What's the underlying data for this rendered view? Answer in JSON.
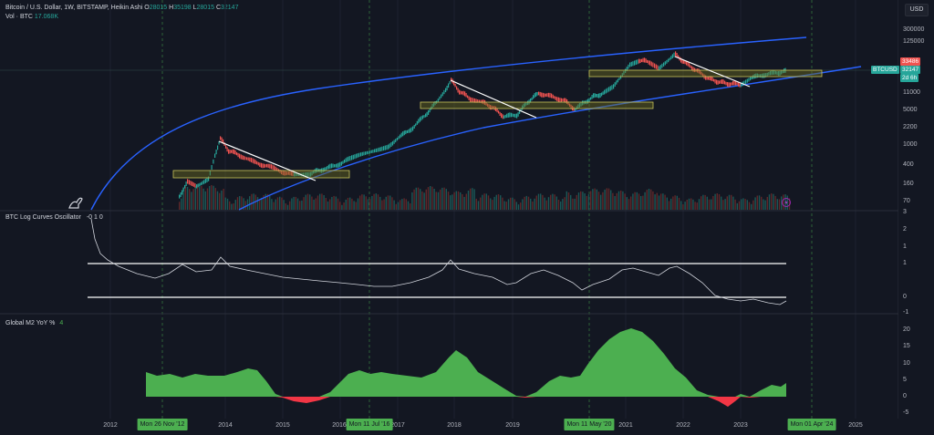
{
  "header": {
    "symbol_line": "Bitcoin / U.S. Dollar, 1W, BITSTAMP, Heikin Ashi",
    "o_label": "O",
    "o_value": "28015",
    "h_label": "H",
    "h_value": "35198",
    "l_label": "L",
    "l_value": "28015",
    "c_label": "C",
    "c_value": "32147",
    "vol_label": "Vol · BTC",
    "vol_value": "17.068K"
  },
  "currency_button": "USD",
  "price_axis": {
    "labels": [
      "300000",
      "125000",
      "33486",
      "11000",
      "5000",
      "2200",
      "1000",
      "400",
      "160",
      "70"
    ],
    "last_price_red": "33486",
    "symbol_tag": "BTCUSD",
    "last_price_green": "32147",
    "countdown": "2d 6h"
  },
  "oscillator": {
    "title": "BTC Log Curves Oscillator",
    "values": "-0  1  0",
    "axis_labels": [
      "3",
      "2",
      "1",
      "1",
      "0",
      "-1"
    ]
  },
  "m2": {
    "title": "Global M2 YoY %",
    "value": "4",
    "axis_labels": [
      "20",
      "15",
      "10",
      "5",
      "0",
      "-5"
    ]
  },
  "time_axis": {
    "labels": [
      "2012",
      "2014",
      "2015",
      "2016",
      "2017",
      "2018",
      "2019",
      "2021",
      "2022",
      "2023",
      "2025"
    ],
    "markers": [
      "Mon 26 Nov '12",
      "Mon 11 Jul '16",
      "Mon 11 May '20",
      "Mon 01 Apr '24"
    ]
  },
  "colors": {
    "background": "#131722",
    "curve": "#2962ff",
    "up": "#26a69a",
    "down": "#ef5350",
    "m2_pos": "#4caf50",
    "m2_neg": "#f23645",
    "box_fill": "#6b6a1e",
    "box_stroke": "#c9c35a"
  },
  "icons": {
    "logo": "tradingview-dino-icon",
    "flash": "lightning-icon"
  }
}
